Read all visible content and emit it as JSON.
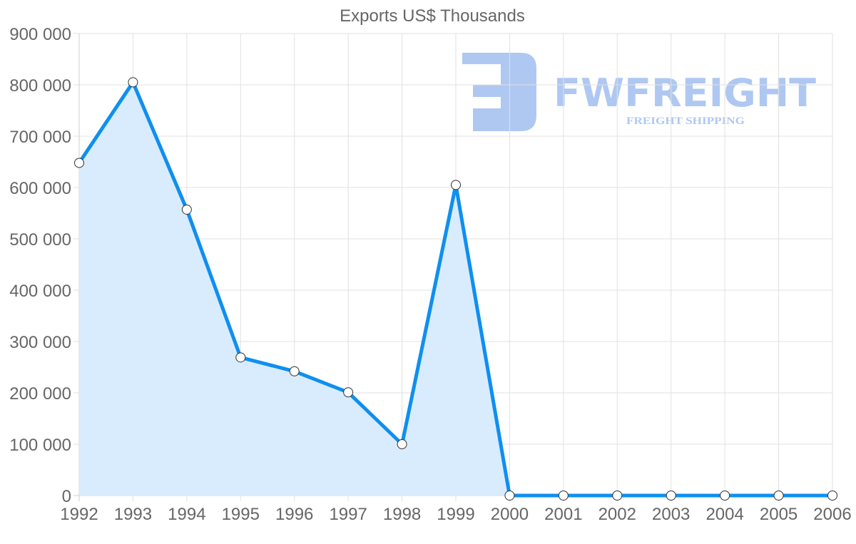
{
  "chart_data": {
    "type": "line",
    "title": "Exports US$ Thousands",
    "xlabel": "",
    "ylabel": "",
    "categories": [
      "1992",
      "1993",
      "1994",
      "1995",
      "1996",
      "1997",
      "1998",
      "1999",
      "2000",
      "2001",
      "2002",
      "2003",
      "2004",
      "2005",
      "2006"
    ],
    "series": [
      {
        "name": "Exports US$ Thousands",
        "values": [
          648000,
          805000,
          557000,
          269000,
          242000,
          201000,
          100000,
          605000,
          0,
          0,
          0,
          0,
          0,
          0,
          0
        ],
        "fill": true,
        "color": "#0f8ff0",
        "fill_color": "#d9ecfd"
      }
    ],
    "ylim": [
      0,
      900000
    ],
    "yticks": [
      0,
      100000,
      200000,
      300000,
      400000,
      500000,
      600000,
      700000,
      800000,
      900000
    ],
    "ytick_labels": [
      "0",
      "100 000",
      "200 000",
      "300 000",
      "400 000",
      "500 000",
      "600 000",
      "700 000",
      "800 000",
      "900 000"
    ],
    "grid": true,
    "legend": "none"
  },
  "watermark": {
    "brand": "FWFREIGHT",
    "tagline": "FREIGHT SHIPPING",
    "color": "#afc8f2"
  },
  "colors": {
    "line": "#0f8ff0",
    "fill": "#d9ecfd",
    "grid": "#e1e1e1",
    "text": "#666666"
  }
}
